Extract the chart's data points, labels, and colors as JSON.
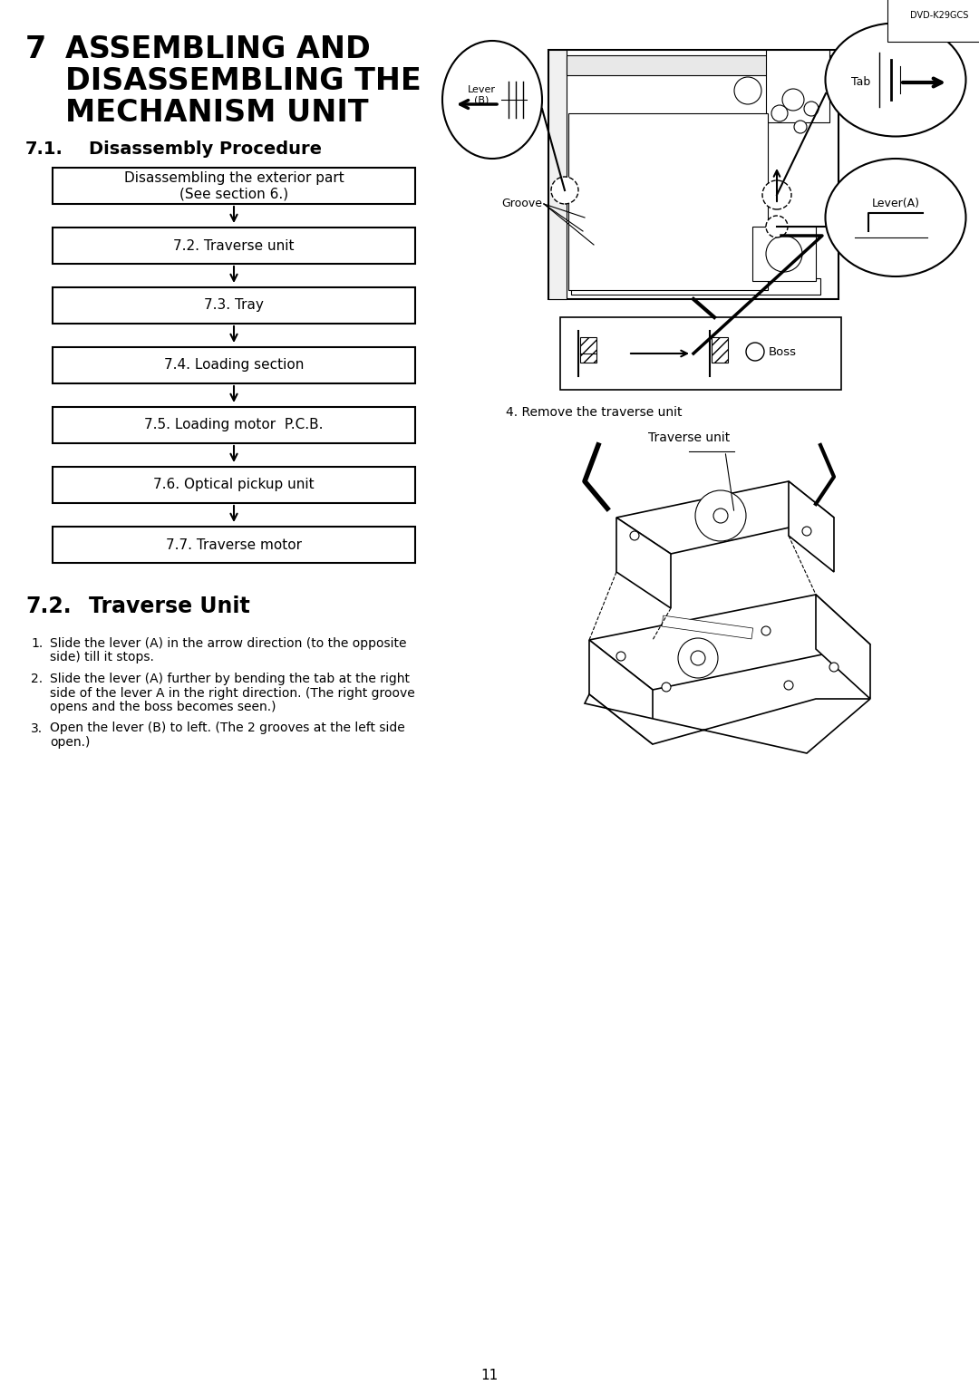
{
  "title_number": "7",
  "title_lines": [
    "ASSEMBLING AND",
    "DISASSEMBLING THE",
    "MECHANISM UNIT"
  ],
  "section_71_num": "7.1.",
  "section_71_title": "Disassembly Procedure",
  "section_72_num": "7.2.",
  "section_72_title": "Traverse Unit",
  "flowchart_boxes": [
    "Disassembling the exterior part\n(See section 6.)",
    "7.2. Traverse unit",
    "7.3. Tray",
    "7.4. Loading section",
    "7.5. Loading motor  P.C.B.",
    "7.6. Optical pickup unit",
    "7.7. Traverse motor"
  ],
  "bullet_points": [
    [
      "Slide the lever (A) in the arrow direction (to the opposite",
      "side) till it stops."
    ],
    [
      "Slide the lever (A) further by bending the tab at the right",
      "side of the lever A in the right direction. (The right groove",
      "opens and the boss becomes seen.)"
    ],
    [
      "Open the lever (B) to left. (The 2 grooves at the left side",
      "open.)"
    ]
  ],
  "dvd_label": "DVD-K29GCS",
  "lbl_lever_b": "Lever\n(B)",
  "lbl_tab": "Tab",
  "lbl_lever_a": "Lever(A)",
  "lbl_groove": "Groove",
  "lbl_boss": "Boss",
  "lbl_remove": "4. Remove the traverse unit",
  "lbl_traverse": "Traverse unit",
  "page_number": "11",
  "bg_color": "#ffffff"
}
